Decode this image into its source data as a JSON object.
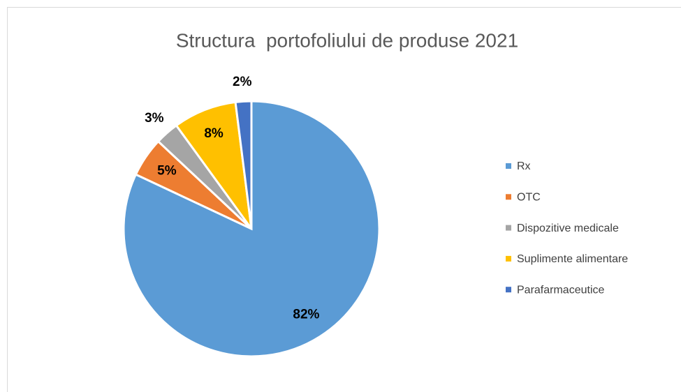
{
  "chart_data": {
    "type": "pie",
    "title": "Structura  portofoliului de produse 2021",
    "categories": [
      "Rx",
      "OTC",
      "Dispozitive medicale",
      "Suplimente alimentare",
      "Parafarmaceutice"
    ],
    "values": [
      82,
      5,
      3,
      8,
      2
    ],
    "value_labels": [
      "82%",
      "5%",
      "3%",
      "8%",
      "2%"
    ],
    "colors": [
      "#5b9bd5",
      "#ed7d31",
      "#a5a5a5",
      "#ffc000",
      "#4472c4"
    ],
    "legend": "right"
  }
}
